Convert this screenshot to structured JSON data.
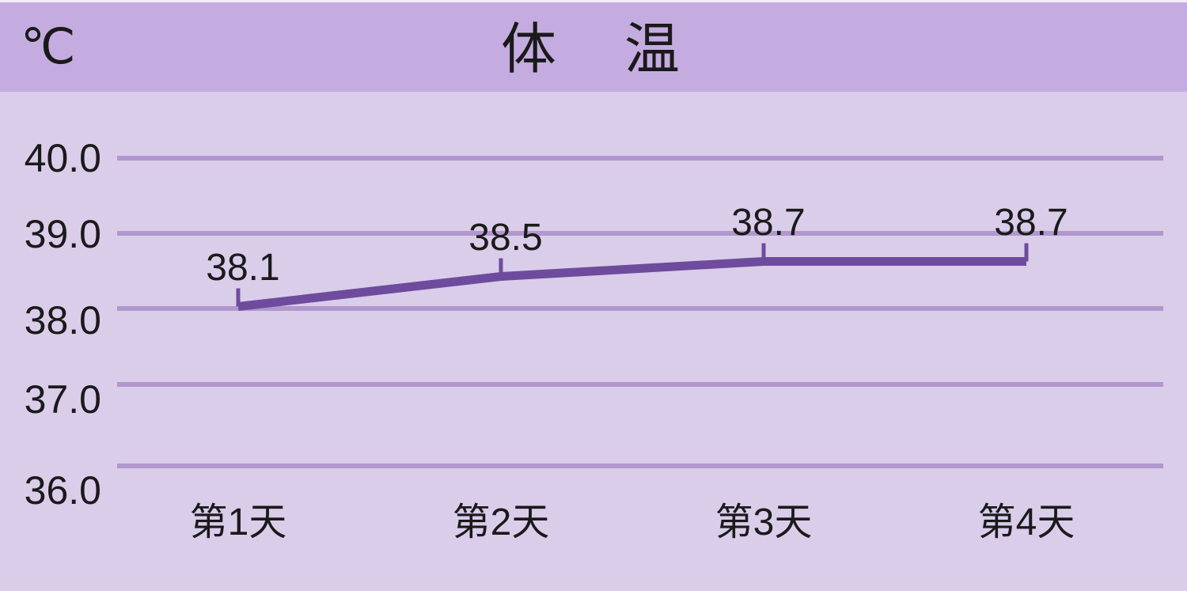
{
  "header": {
    "unit_label": "℃",
    "title": "体　温"
  },
  "chart_data": {
    "type": "line",
    "title": "体温",
    "y_axis_unit": "℃",
    "categories": [
      "第1天",
      "第2天",
      "第3天",
      "第4天"
    ],
    "series": [
      {
        "name": "体温",
        "values": [
          38.1,
          38.5,
          38.7,
          38.7
        ]
      }
    ],
    "point_labels": [
      "38.1",
      "38.5",
      "38.7",
      "38.7"
    ],
    "y_tick_labels": [
      "40.0",
      "39.0",
      "38.0",
      "37.0",
      "36.0"
    ],
    "y_ticks": [
      40.0,
      39.0,
      38.0,
      37.0,
      36.0
    ],
    "ylim": [
      36.0,
      40.0
    ],
    "xlabel": "",
    "ylabel": "℃",
    "grid": true,
    "legend": false
  },
  "colors": {
    "header_bg": "#c5ace0",
    "chart_bg": "#d9cdea",
    "gridline": "#b197cd",
    "line": "#6f4b9e",
    "text": "#1a1a1a",
    "bottom_strip": "#ffffff"
  }
}
